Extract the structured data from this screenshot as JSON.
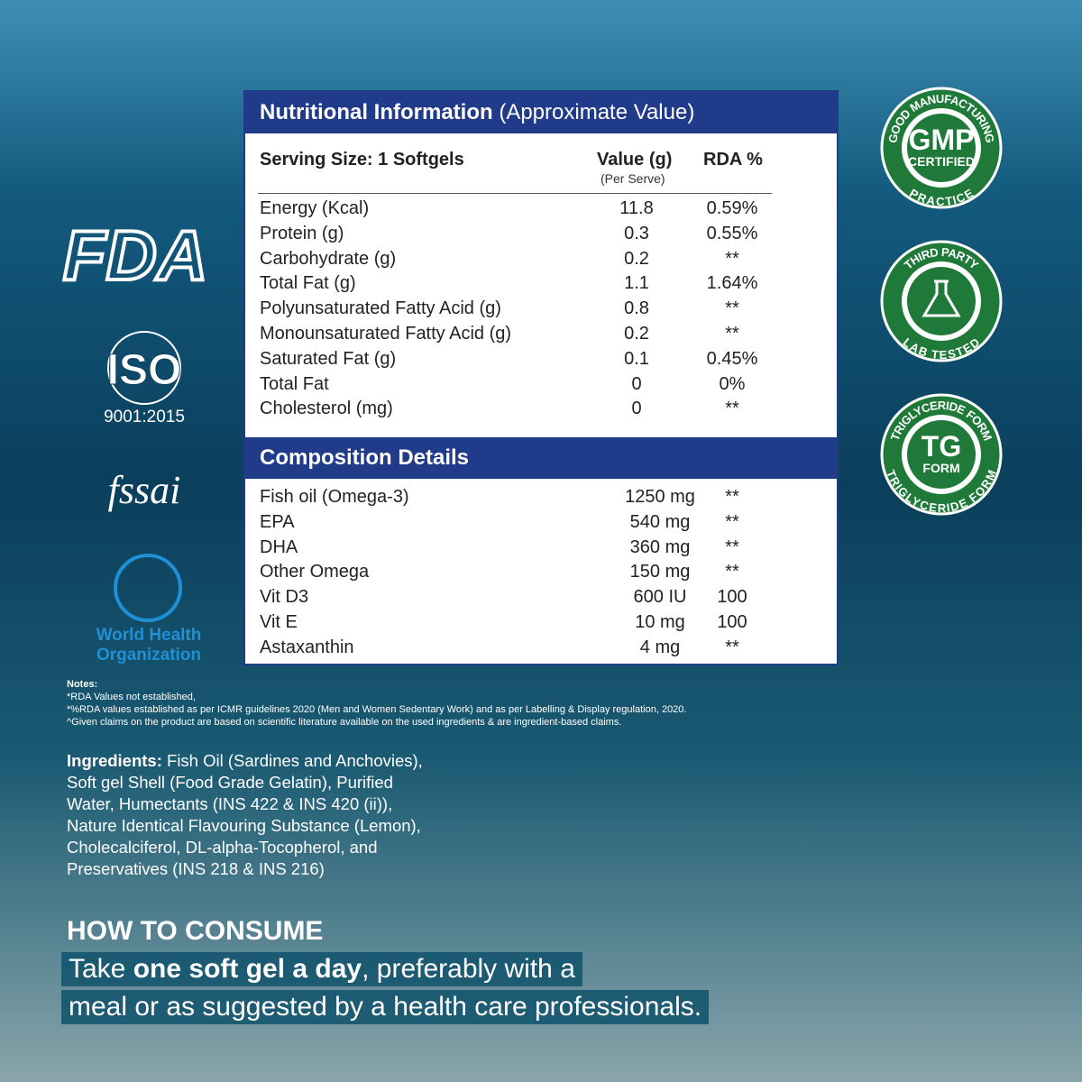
{
  "nutrition": {
    "title": "Nutritional Information",
    "subtitle": "(Approximate Value)",
    "serving_size": "Serving Size: 1 Softgels",
    "col_value": "Value (g)",
    "col_value_sub": "(Per Serve)",
    "col_rda": "RDA %",
    "rows": [
      [
        "Energy (Kcal)",
        "11.8",
        "0.59%"
      ],
      [
        "Protein (g)",
        "0.3",
        "0.55%"
      ],
      [
        "Carbohydrate (g)",
        "0.2",
        "**"
      ],
      [
        "Total Fat (g)",
        "1.1",
        "1.64%"
      ],
      [
        "Polyunsaturated Fatty Acid (g)",
        "0.8",
        "**"
      ],
      [
        "Monounsaturated Fatty Acid (g)",
        "0.2",
        "**"
      ],
      [
        "Saturated Fat (g)",
        "0.1",
        "0.45%"
      ],
      [
        "Total Fat",
        "0",
        "0%"
      ],
      [
        "Cholesterol (mg)",
        "0",
        "**"
      ]
    ]
  },
  "composition": {
    "title": "Composition Details",
    "rows": [
      [
        "Fish oil (Omega-3)",
        "1250 mg",
        "**"
      ],
      [
        "EPA",
        "540 mg",
        "**"
      ],
      [
        "DHA",
        "360 mg",
        "**"
      ],
      [
        "Other Omega",
        "150 mg",
        "**"
      ],
      [
        "Vit D3",
        "600 IU",
        "100"
      ],
      [
        "Vit E",
        "10 mg",
        "100"
      ],
      [
        "Astaxanthin",
        "4 mg",
        "**"
      ]
    ]
  },
  "logos": {
    "fda": "FDA",
    "iso": "ISO",
    "iso_sub": "9001:2015",
    "fssai": "fssai",
    "who": [
      "World Health",
      "Organization"
    ]
  },
  "badges": [
    {
      "top": "GOOD MANUFACTURING",
      "bottom": "PRACTICE",
      "center": [
        "GMP",
        "CERTIFIED"
      ]
    },
    {
      "top": "THIRD PARTY",
      "bottom": "LAB TESTED",
      "center": []
    },
    {
      "top": "TRIGLYCERIDE FORM",
      "bottom": "TRIGLYCERIDE FORM",
      "center": [
        "TG",
        "FORM"
      ]
    }
  ],
  "notes": {
    "title": "Notes:",
    "lines": [
      "*RDA Values not established,",
      "*%RDA values established as per ICMR guidelines 2020 (Men and Women Sedentary Work) and as per Labelling & Display regulation, 2020.",
      "^Given claims on the product are based on scientific literature available on the used ingredients & are ingredient-based claims."
    ]
  },
  "ingredients": {
    "label": "Ingredients:",
    "lines": [
      "Fish Oil (Sardines and Anchovies),",
      "Soft gel Shell (Food Grade Gelatin), Purified",
      "Water, Humectants (INS 422 & INS 420 (ii)),",
      "Nature Identical Flavouring Substance (Lemon),",
      "Cholecalciferol, DL-alpha-Tocopherol, and",
      "Preservatives (INS 218 & INS 216)"
    ]
  },
  "consume": {
    "title": "HOW TO CONSUME",
    "line1": [
      "Take ",
      "one soft gel a day",
      ", preferably with a"
    ],
    "line2": "meal or as suggested by a health care professionals."
  }
}
